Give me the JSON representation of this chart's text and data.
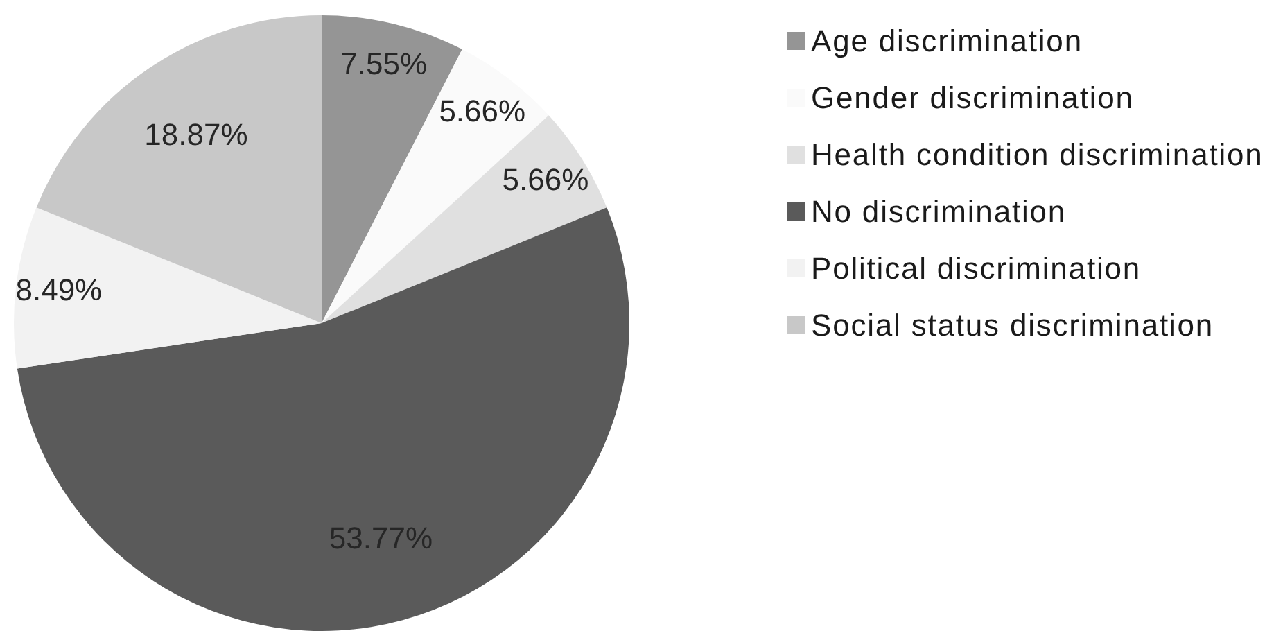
{
  "chart_data": {
    "type": "pie",
    "categories": [
      "Age discrimination",
      "Gender discrimination",
      "Health condition discrimination",
      "No discrimination",
      "Political discrimination",
      "Social status discrimination"
    ],
    "values": [
      7.55,
      5.66,
      5.66,
      53.77,
      8.49,
      18.87
    ],
    "colors": [
      "#959595",
      "#fafafa",
      "#e0e0e0",
      "#5a5a5a",
      "#f2f2f2",
      "#c8c8c8"
    ],
    "value_labels": [
      "7.55%",
      "5.66%",
      "5.66%",
      "53.77%",
      "8.49%",
      "18.87%"
    ],
    "legend": "right"
  }
}
